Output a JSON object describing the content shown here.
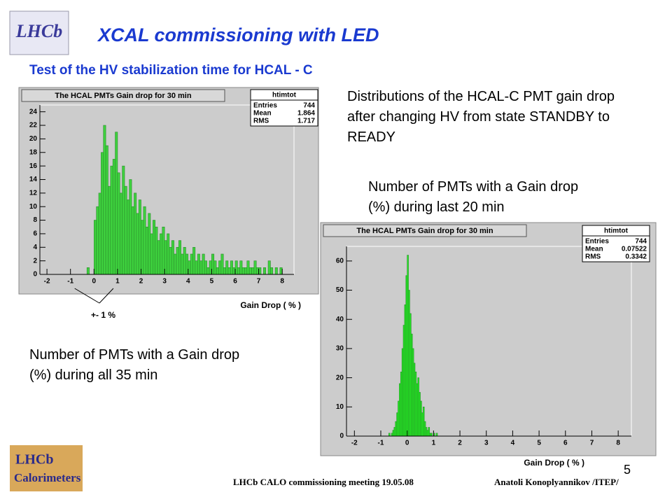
{
  "slide": {
    "title": "XCAL commissioning with LED",
    "subtitle": "Test of the HV stabilization time for HCAL - C",
    "logo_top": "LHCb",
    "logo_bottom": [
      "LHCb",
      "Calorimeters"
    ],
    "text1": "Distributions of the HCAL-C PMT gain drop after changing HV from state STANDBY to READY",
    "text2": "Number of PMTs with a Gain drop (%) during last 20 min",
    "text3": "Number of PMTs with a Gain drop (%) during all 35 min",
    "footer_left": "LHCb CALO commissioning meeting  19.05.08",
    "footer_right": "Anatoli Konoplyannikov /ITEP/",
    "page": "5"
  },
  "chart_data": [
    {
      "type": "histogram",
      "title": "The HCAL PMTs Gain drop for 30 min",
      "x_label": "Gain Drop  ( % )",
      "annotation": "+- 1 %",
      "color": "#3ed23e",
      "stats": {
        "name": "htimtot",
        "labels": [
          "Entries",
          "Mean",
          "RMS"
        ],
        "values": [
          744,
          1.864,
          1.717
        ]
      },
      "bins": [
        -0.3,
        -0.2,
        -0.1,
        0.0,
        0.1,
        0.2,
        0.3,
        0.4,
        0.5,
        0.6,
        0.7,
        0.8,
        0.9,
        1.0,
        1.1,
        1.2,
        1.3,
        1.4,
        1.5,
        1.6,
        1.7,
        1.8,
        1.9,
        2.0,
        2.1,
        2.2,
        2.3,
        2.4,
        2.5,
        2.6,
        2.7,
        2.8,
        2.9,
        3.0,
        3.1,
        3.2,
        3.3,
        3.4,
        3.5,
        3.6,
        3.7,
        3.8,
        3.9,
        4.0,
        4.1,
        4.2,
        4.3,
        4.4,
        4.5,
        4.6,
        4.7,
        4.8,
        4.9,
        5.0,
        5.1,
        5.2,
        5.3,
        5.4,
        5.5,
        5.6,
        5.7,
        5.8,
        5.9,
        6.0,
        6.1,
        6.2,
        6.3,
        6.4,
        6.5,
        6.6,
        6.7,
        6.8,
        6.9,
        7.0,
        7.1,
        7.2,
        7.3,
        7.4,
        7.5,
        7.6,
        7.7,
        7.8,
        7.9,
        8.0
      ],
      "values": [
        1,
        0,
        0,
        8,
        10,
        12,
        18,
        22,
        19,
        13,
        16,
        17,
        21,
        15,
        12,
        16,
        13,
        11,
        14,
        10,
        12,
        9,
        11,
        8,
        10,
        7,
        9,
        6,
        8,
        7,
        5,
        6,
        7,
        5,
        6,
        4,
        5,
        3,
        4,
        5,
        3,
        4,
        3,
        2,
        3,
        4,
        2,
        3,
        2,
        3,
        2,
        1,
        2,
        3,
        2,
        1,
        2,
        3,
        1,
        2,
        1,
        2,
        1,
        2,
        1,
        2,
        1,
        1,
        2,
        1,
        1,
        2,
        1,
        1,
        0,
        1,
        0,
        2,
        1,
        0,
        1,
        0,
        1
      ],
      "xlim": [
        -2.3,
        8.5
      ],
      "xticks": [
        -2,
        -1,
        0,
        1,
        2,
        3,
        4,
        5,
        6,
        7,
        8
      ],
      "ylim": [
        0,
        25
      ],
      "yticks": [
        0,
        2,
        4,
        6,
        8,
        10,
        12,
        14,
        16,
        18,
        20,
        22,
        24
      ]
    },
    {
      "type": "histogram",
      "title": "The HCAL PMTs Gain drop for 30 min",
      "x_label": "Gain Drop  ( % )",
      "color": "#22ee22",
      "stats": {
        "name": "htimtot",
        "labels": [
          "Entries",
          "Mean",
          "RMS"
        ],
        "values": [
          744,
          0.07522,
          0.3342
        ]
      },
      "bins": [
        -0.7,
        -0.65,
        -0.6,
        -0.55,
        -0.5,
        -0.45,
        -0.4,
        -0.35,
        -0.3,
        -0.25,
        -0.2,
        -0.15,
        -0.1,
        -0.05,
        0.0,
        0.05,
        0.1,
        0.15,
        0.2,
        0.25,
        0.3,
        0.35,
        0.4,
        0.45,
        0.5,
        0.55,
        0.6,
        0.65,
        0.7,
        0.75,
        0.8,
        0.85,
        0.9,
        0.95,
        1.0,
        1.05,
        1.1,
        1.15,
        1.2
      ],
      "values": [
        1,
        0,
        1,
        2,
        3,
        5,
        8,
        12,
        18,
        22,
        30,
        38,
        45,
        55,
        62,
        50,
        42,
        35,
        30,
        25,
        22,
        18,
        20,
        15,
        12,
        8,
        10,
        5,
        3,
        2,
        3,
        1,
        1,
        0,
        1,
        0,
        1,
        0
      ],
      "xlim": [
        -2.3,
        8.5
      ],
      "xticks": [
        -2,
        -1,
        0,
        1,
        2,
        3,
        4,
        5,
        6,
        7,
        8
      ],
      "ylim": [
        0,
        65
      ],
      "yticks": [
        0,
        10,
        20,
        30,
        40,
        50,
        60
      ]
    }
  ]
}
